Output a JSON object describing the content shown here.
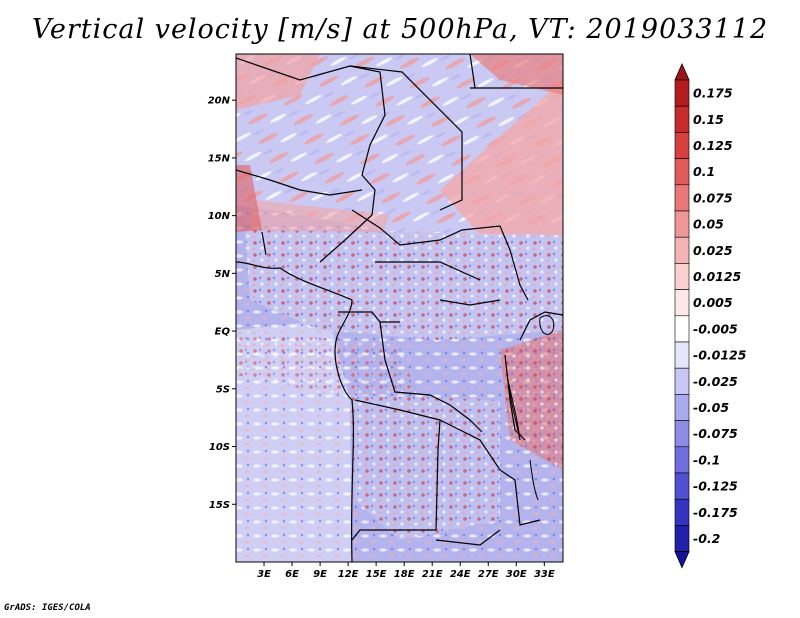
{
  "title": "Vertical velocity [m/s] at 500hPa, VT: 2019033112",
  "footer": "GrADS: IGES/COLA",
  "map": {
    "lon_range": [
      0,
      35
    ],
    "lat_range": [
      -20,
      24
    ],
    "lat_ticks": [
      {
        "lat": 20,
        "label": "20N"
      },
      {
        "lat": 15,
        "label": "15N"
      },
      {
        "lat": 10,
        "label": "10N"
      },
      {
        "lat": 5,
        "label": "5N"
      },
      {
        "lat": 0,
        "label": "EQ"
      },
      {
        "lat": -5,
        "label": "5S"
      },
      {
        "lat": -10,
        "label": "10S"
      },
      {
        "lat": -15,
        "label": "15S"
      }
    ],
    "lon_ticks": [
      {
        "lon": 3,
        "label": "3E"
      },
      {
        "lon": 6,
        "label": "6E"
      },
      {
        "lon": 9,
        "label": "9E"
      },
      {
        "lon": 12,
        "label": "12E"
      },
      {
        "lon": 15,
        "label": "15E"
      },
      {
        "lon": 18,
        "label": "18E"
      },
      {
        "lon": 21,
        "label": "21E"
      },
      {
        "lon": 24,
        "label": "24E"
      },
      {
        "lon": 27,
        "label": "27E"
      },
      {
        "lon": 30,
        "label": "30E"
      },
      {
        "lon": 33,
        "label": "33E"
      }
    ]
  },
  "colorbar": {
    "levels": [
      {
        "label": "0.175",
        "color": "#b51c20"
      },
      {
        "label": "0.15",
        "color": "#c62c2c"
      },
      {
        "label": "0.125",
        "color": "#d84040"
      },
      {
        "label": "0.1",
        "color": "#e25a5a"
      },
      {
        "label": "0.075",
        "color": "#ea7878"
      },
      {
        "label": "0.05",
        "color": "#f09696"
      },
      {
        "label": "0.025",
        "color": "#f5b4b4"
      },
      {
        "label": "0.0125",
        "color": "#fad0d0"
      },
      {
        "label": "0.005",
        "color": "#fde8e8"
      },
      {
        "label": "-0.005",
        "color": "#ffffff"
      },
      {
        "label": "-0.0125",
        "color": "#e6e6fb"
      },
      {
        "label": "-0.025",
        "color": "#c8c8f4"
      },
      {
        "label": "-0.05",
        "color": "#aaaaee"
      },
      {
        "label": "-0.075",
        "color": "#8c8ce6"
      },
      {
        "label": "-0.1",
        "color": "#6e6ede"
      },
      {
        "label": "-0.125",
        "color": "#5050d2"
      },
      {
        "label": "-0.175",
        "color": "#3434c0"
      },
      {
        "label": "-0.2",
        "color": "#2020a8"
      }
    ],
    "top_color": "#a01418",
    "bottom_color": "#14149a"
  }
}
